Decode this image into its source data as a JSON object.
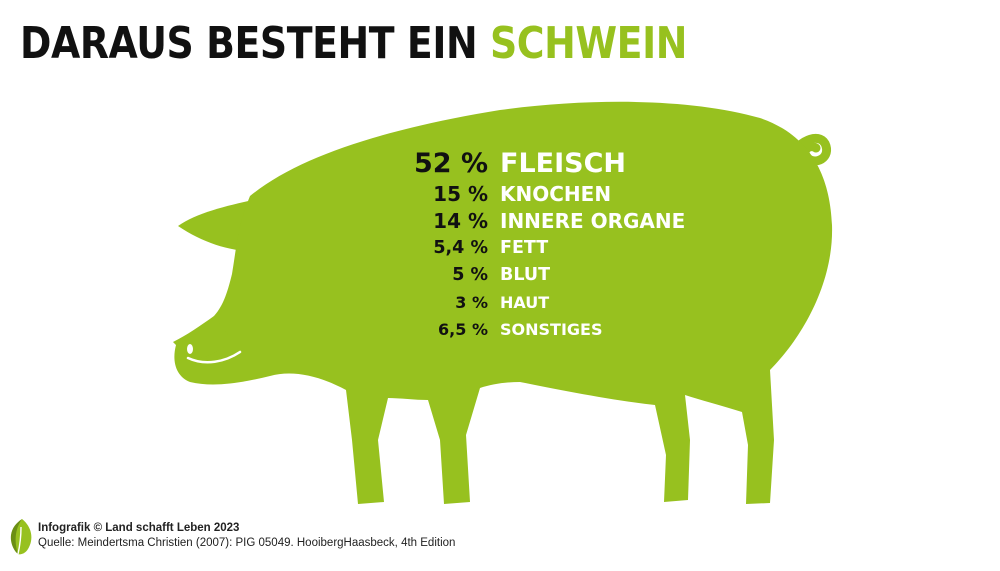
{
  "title": {
    "prefix": "DARAUS BESTEHT EIN",
    "accent": "SCHWEIN"
  },
  "colors": {
    "accent": "#97c11f",
    "text_dark": "#111111",
    "label_text": "#ffffff"
  },
  "chart_data": {
    "type": "table",
    "rows": [
      {
        "value_label": "52 %",
        "value": 52,
        "category": "FLEISCH"
      },
      {
        "value_label": "15 %",
        "value": 15,
        "category": "KNOCHEN"
      },
      {
        "value_label": "14 %",
        "value": 14,
        "category": "INNERE ORGANE"
      },
      {
        "value_label": "5,4 %",
        "value": 5.4,
        "category": "FETT"
      },
      {
        "value_label": "5 %",
        "value": 5,
        "category": "BLUT"
      },
      {
        "value_label": "3 %",
        "value": 3,
        "category": "HAUT"
      },
      {
        "value_label": "6,5 %",
        "value": 6.5,
        "category": "SONSTIGES"
      }
    ]
  },
  "footer": {
    "credit": "Infografik © Land schafft Leben 2023",
    "source": "Quelle: Meindertsma Christien (2007): PIG 05049. HooibergHaasbeck, 4th Edition"
  },
  "icons": {
    "logo": "leaf-logo-icon",
    "pig": "pig-silhouette-icon"
  }
}
